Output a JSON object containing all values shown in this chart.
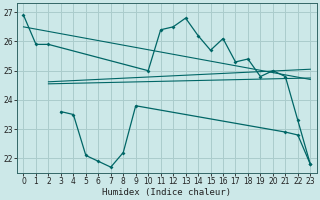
{
  "xlabel": "Humidex (Indice chaleur)",
  "background_color": "#cce8e8",
  "grid_color": "#aacccc",
  "line_color": "#006666",
  "ylim": [
    21.5,
    27.3
  ],
  "xlim": [
    -0.5,
    23.5
  ],
  "yticks": [
    22,
    23,
    24,
    25,
    26,
    27
  ],
  "xticks": [
    0,
    1,
    2,
    3,
    4,
    5,
    6,
    7,
    8,
    9,
    10,
    11,
    12,
    13,
    14,
    15,
    16,
    17,
    18,
    19,
    20,
    21,
    22,
    23
  ],
  "series": {
    "line1": {
      "x": [
        0,
        1,
        2,
        10,
        11,
        12,
        13,
        14,
        15,
        16,
        17,
        18,
        19,
        20,
        21,
        22,
        23
      ],
      "y": [
        26.9,
        25.9,
        25.9,
        25.0,
        26.4,
        26.5,
        26.8,
        26.2,
        25.7,
        26.1,
        25.3,
        25.4,
        24.8,
        25.0,
        24.8,
        23.3,
        21.8
      ]
    },
    "line2": {
      "x": [
        0,
        23
      ],
      "y": [
        26.5,
        24.7
      ]
    },
    "line3": {
      "x": [
        2,
        23
      ],
      "y": [
        24.55,
        24.75
      ]
    },
    "line4": {
      "x": [
        2,
        23
      ],
      "y": [
        24.62,
        25.05
      ]
    },
    "line5": {
      "x": [
        3,
        4,
        5,
        6,
        7,
        8,
        9,
        21,
        22,
        23
      ],
      "y": [
        23.6,
        23.5,
        22.1,
        21.9,
        21.7,
        22.2,
        23.8,
        22.9,
        22.8,
        21.8
      ]
    }
  }
}
